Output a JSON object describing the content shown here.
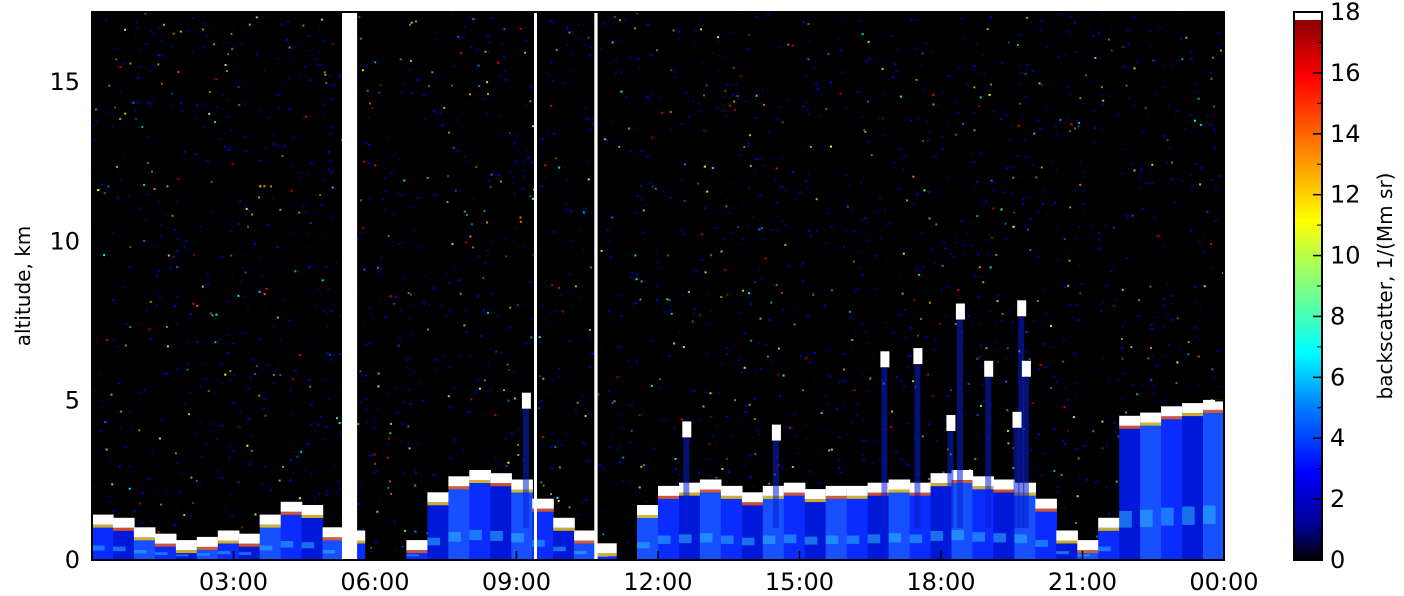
{
  "chart_data": {
    "type": "heatmap",
    "title": "",
    "xlabel": "",
    "ylabel": "altitude, km",
    "x_ticks": [
      "03:00",
      "06:00",
      "09:00",
      "12:00",
      "15:00",
      "18:00",
      "21:00",
      "00:00"
    ],
    "x_tick_hours": [
      3,
      6,
      9,
      12,
      15,
      18,
      21,
      24
    ],
    "x_range_hours": [
      0,
      24
    ],
    "y_ticks": [
      "0",
      "5",
      "10",
      "15"
    ],
    "y_tick_values": [
      0,
      5,
      10,
      15
    ],
    "ylim": [
      0,
      17.2
    ],
    "colorbar": {
      "label": "backscatter, 1/(Mm sr)",
      "ticks": [
        "0",
        "2",
        "4",
        "6",
        "8",
        "10",
        "12",
        "14",
        "16",
        "18"
      ],
      "tick_values": [
        0,
        2,
        4,
        6,
        8,
        10,
        12,
        14,
        16,
        18
      ],
      "range": [
        0,
        18
      ],
      "over_color": "#ffffff",
      "colormap": [
        "#000000",
        "#00008f",
        "#0000ff",
        "#0080ff",
        "#00ffff",
        "#80ff80",
        "#ffff00",
        "#ff8000",
        "#ff0000",
        "#800000"
      ]
    },
    "background_color": "#000000",
    "data_gaps_hours": [
      {
        "start": 5.3,
        "end": 5.62
      },
      {
        "start": 9.37,
        "end": 9.42
      },
      {
        "start": 10.65,
        "end": 10.72
      }
    ],
    "layers": [
      {
        "name": "boundary-layer",
        "top_km": [
          1.3,
          1.2,
          0.9,
          0.7,
          0.5,
          0.6,
          0.8,
          0.7,
          1.3,
          1.7,
          1.6,
          0.9,
          0.8,
          0,
          0,
          0.5,
          2.0,
          2.5,
          2.7,
          2.6,
          2.4,
          1.8,
          1.2,
          0.8,
          0.4,
          0,
          1.6,
          2.2,
          2.3,
          2.4,
          2.2,
          2.0,
          2.2,
          2.3,
          2.1,
          2.2,
          2.2,
          2.3,
          2.4,
          2.3,
          2.6,
          2.7,
          2.5,
          2.4,
          2.3,
          1.8,
          0.8,
          0.5,
          1.2,
          4.4,
          4.5,
          4.7,
          4.8,
          4.9
        ]
      },
      {
        "name": "aerosol-cloud",
        "points": [
          [
            16.8,
            6.3
          ],
          [
            17.5,
            6.4
          ],
          [
            18.4,
            7.8
          ],
          [
            19.0,
            6.0
          ],
          [
            19.7,
            7.9
          ],
          [
            19.8,
            6.0
          ],
          [
            9.2,
            5.0
          ],
          [
            12.6,
            4.1
          ],
          [
            14.5,
            4.0
          ],
          [
            18.2,
            4.3
          ],
          [
            19.6,
            4.4
          ]
        ]
      }
    ]
  }
}
